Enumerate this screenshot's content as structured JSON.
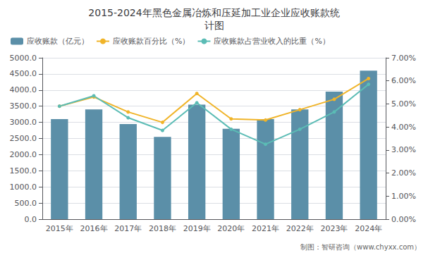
{
  "chart_data": {
    "type": "bar",
    "title": "2015-2024年黑色金属冶炼和压延加工业企业应收账款统\n计图",
    "annotations": [
      "制图：智研咨询（www.chyxx.com）"
    ],
    "categories": [
      "2015年",
      "2016年",
      "2017年",
      "2018年",
      "2019年",
      "2020年",
      "2021年",
      "2022年",
      "2023年",
      "2024年"
    ],
    "series": [
      {
        "name": "应收账款（亿元）",
        "type": "bar",
        "color": "#5b8fa8",
        "values": [
          3100,
          3400,
          2950,
          2550,
          3550,
          2800,
          3100,
          3400,
          3950,
          4600
        ]
      },
      {
        "name": "应收账款百分比（%）",
        "type": "line",
        "axis": "y2",
        "marker": "circle",
        "color": "#f0b429",
        "values": [
          0.049,
          0.053,
          0.0465,
          0.042,
          0.0545,
          0.0435,
          0.043,
          0.0475,
          0.052,
          0.061
        ]
      },
      {
        "name": "应收账款占营业收入的比重（%）",
        "type": "line",
        "axis": "y2",
        "marker": "circle",
        "color": "#5bbcb5",
        "values": [
          0.049,
          0.0535,
          0.044,
          0.0385,
          0.0505,
          0.039,
          0.0325,
          0.039,
          0.0465,
          0.0585
        ]
      }
    ],
    "ylim": [
      0,
      5000
    ],
    "yticks": [
      {
        "value": 0,
        "label": "0.0"
      },
      {
        "value": 500,
        "label": "500.0"
      },
      {
        "value": 1000,
        "label": "1000.0"
      },
      {
        "value": 1500,
        "label": "1500.0"
      },
      {
        "value": 2000,
        "label": "2000.0"
      },
      {
        "value": 2500,
        "label": "2500.0"
      },
      {
        "value": 3000,
        "label": "3000.0"
      },
      {
        "value": 3500,
        "label": "3500.0"
      },
      {
        "value": 4000,
        "label": "4000.0"
      },
      {
        "value": 4500,
        "label": "4500.0"
      },
      {
        "value": 5000,
        "label": "5000.0"
      }
    ],
    "y2lim": [
      0.0,
      0.07
    ],
    "y2ticks": [
      {
        "value": 0.0,
        "label": "0.00%"
      },
      {
        "value": 0.01,
        "label": "1.00%"
      },
      {
        "value": 0.02,
        "label": "2.00%"
      },
      {
        "value": 0.03,
        "label": "3.00%"
      },
      {
        "value": 0.04,
        "label": "4.00%"
      },
      {
        "value": 0.05,
        "label": "5.00%"
      },
      {
        "value": 0.06,
        "label": "6.00%"
      },
      {
        "value": 0.07,
        "label": "7.00%"
      }
    ],
    "grid": true,
    "legend": "upper left"
  }
}
